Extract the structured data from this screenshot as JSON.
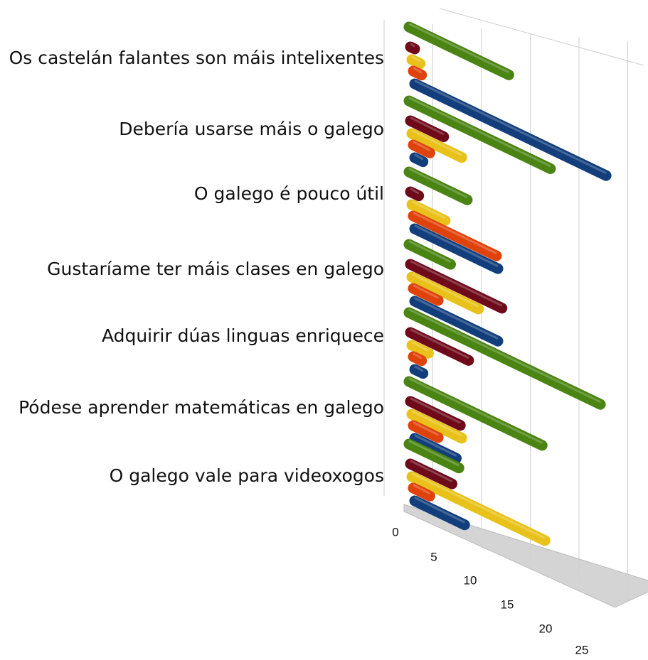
{
  "chart_data": {
    "type": "bar",
    "orientation": "horizontal",
    "style": "3d-cylinder",
    "categories": [
      "Os castelán falantes son máis intelixentes",
      "Debería usarse máis o galego",
      "O galego é pouco útil",
      "Gustaríame ter máis clases en galego",
      "Adquirir dúas linguas enriquece",
      "Pódese aprender matemáticas en galego",
      "O galego vale para videoxogos"
    ],
    "series": [
      {
        "color": "#123e7c",
        "values": [
          23,
          1,
          10,
          10,
          1,
          5,
          6
        ]
      },
      {
        "color": "#e0420c",
        "values": [
          1,
          2,
          10,
          3,
          1,
          3,
          2
        ]
      },
      {
        "color": "#e8c21a",
        "values": [
          1,
          6,
          4,
          8,
          2,
          6,
          16
        ]
      },
      {
        "color": "#6e0a1a",
        "values": [
          0,
          4,
          1,
          11,
          7,
          6,
          5
        ]
      },
      {
        "color": "#4a8412",
        "values": [
          12,
          17,
          7,
          5,
          23,
          16,
          6
        ]
      }
    ],
    "x_ticks": [
      "0",
      "5",
      "10",
      "15",
      "20",
      "25"
    ],
    "xlim": [
      0,
      25
    ],
    "grid": true,
    "legend": "none"
  }
}
